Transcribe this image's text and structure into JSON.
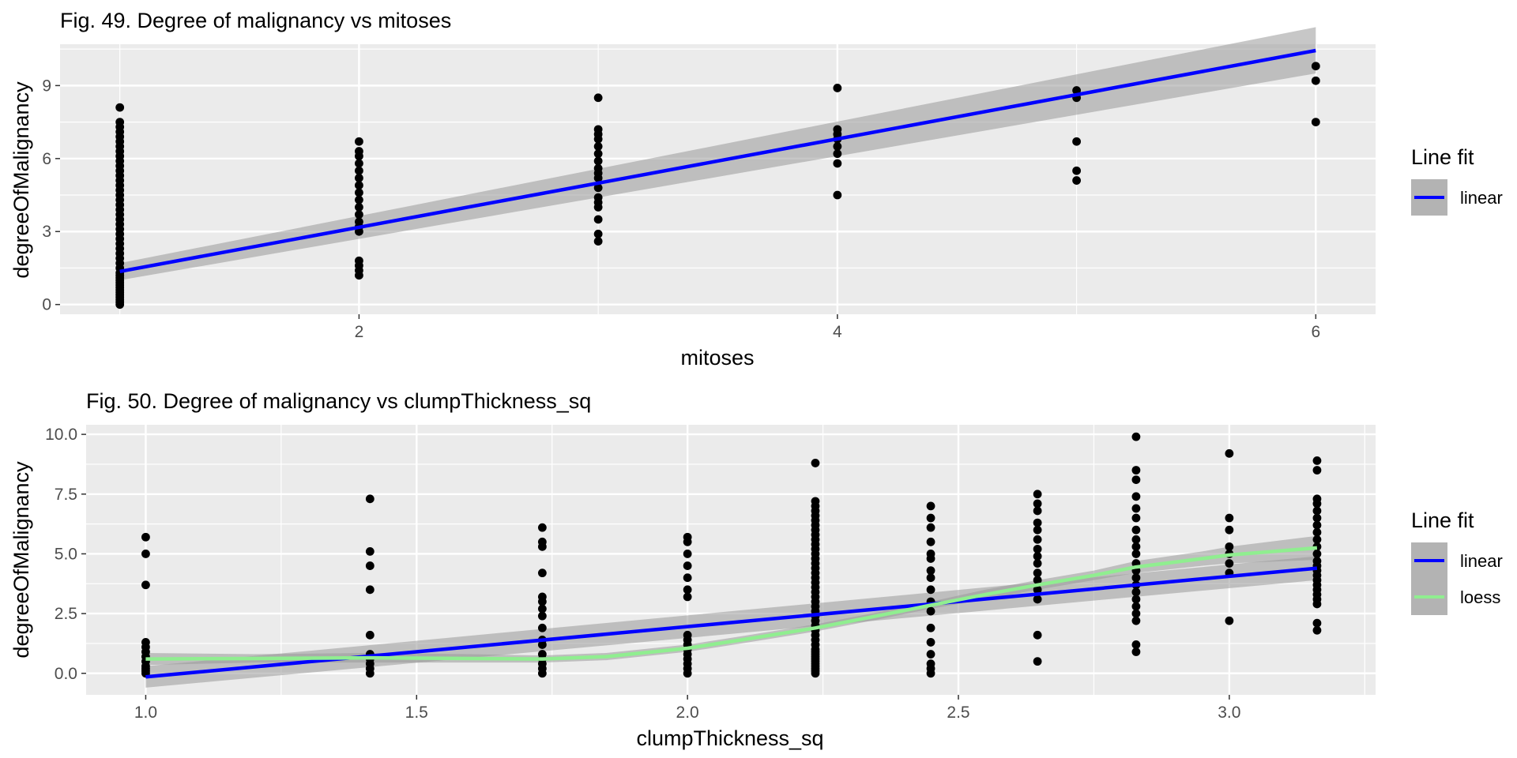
{
  "chart_data": [
    {
      "type": "scatter",
      "title": "Fig. 49. Degree of malignancy vs mitoses",
      "xlabel": "mitoses",
      "ylabel": "degreeOfMalignancy",
      "xlim": [
        0.75,
        6.25
      ],
      "ylim": [
        -0.4,
        10.7
      ],
      "x_ticks": [
        2,
        4,
        6
      ],
      "x_tick_labels": [
        "2",
        "4",
        "6"
      ],
      "y_ticks": [
        0,
        3,
        6,
        9
      ],
      "y_tick_labels": [
        "0",
        "3",
        "6",
        "9"
      ],
      "grid": true,
      "legend": {
        "title": "Line fit",
        "position": "right",
        "entries": [
          {
            "label": "linear",
            "color": "#0000ff"
          }
        ]
      },
      "colors": {
        "panel": "#ebebeb",
        "points": "#000000",
        "linear": "#0000ff",
        "ribbon": "#999999"
      },
      "points": [
        {
          "x": 1,
          "y": [
            0.0,
            0.1,
            0.2,
            0.3,
            0.4,
            0.5,
            0.6,
            0.7,
            0.8,
            0.9,
            1.0,
            1.1,
            1.2,
            1.3,
            1.5,
            1.7,
            1.9,
            2.1,
            2.3,
            2.5,
            2.7,
            2.9,
            3.1,
            3.3,
            3.5,
            3.7,
            3.9,
            4.1,
            4.3,
            4.5,
            4.7,
            4.9,
            5.1,
            5.3,
            5.5,
            5.7,
            5.9,
            6.1,
            6.3,
            6.5,
            6.7,
            6.9,
            7.1,
            7.3,
            7.5,
            8.1
          ]
        },
        {
          "x": 2,
          "y": [
            1.2,
            1.4,
            1.6,
            1.8,
            3.0,
            3.2,
            3.4,
            3.7,
            4.0,
            4.3,
            4.6,
            4.9,
            5.2,
            5.5,
            5.8,
            6.1,
            6.3,
            6.7
          ]
        },
        {
          "x": 3,
          "y": [
            2.6,
            2.9,
            3.5,
            4.0,
            4.2,
            4.4,
            4.8,
            5.2,
            5.4,
            5.6,
            5.9,
            6.2,
            6.5,
            6.8,
            7.0,
            7.2,
            8.5
          ]
        },
        {
          "x": 4,
          "y": [
            4.5,
            5.8,
            6.2,
            6.5,
            6.8,
            7.0,
            7.2,
            8.9
          ]
        },
        {
          "x": 5,
          "y": [
            5.1,
            5.5,
            6.7,
            8.5,
            8.8
          ]
        },
        {
          "x": 6,
          "y": [
            7.5,
            9.2,
            9.8
          ]
        }
      ],
      "fits": [
        {
          "name": "linear",
          "color": "#0000ff",
          "x": [
            1,
            6
          ],
          "y": [
            1.36,
            10.44
          ],
          "se_lower": [
            1.0,
            9.5
          ],
          "se_upper": [
            1.7,
            11.4
          ]
        }
      ]
    },
    {
      "type": "scatter",
      "title": "Fig. 50. Degree of malignancy vs clumpThickness_sq",
      "xlabel": "clumpThickness_sq",
      "ylabel": "degreeOfMalignancy",
      "xlim": [
        0.89,
        3.27
      ],
      "ylim": [
        -0.9,
        10.4
      ],
      "x_ticks": [
        1.0,
        1.5,
        2.0,
        2.5,
        3.0
      ],
      "x_tick_labels": [
        "1.0",
        "1.5",
        "2.0",
        "2.5",
        "3.0"
      ],
      "y_ticks": [
        0,
        2.5,
        5,
        7.5,
        10
      ],
      "y_tick_labels": [
        "0.0",
        "2.5",
        "5.0",
        "7.5",
        "10.0"
      ],
      "grid": true,
      "legend": {
        "title": "Line fit",
        "position": "right",
        "entries": [
          {
            "label": "linear",
            "color": "#0000ff"
          },
          {
            "label": "loess",
            "color": "#90ee90"
          }
        ]
      },
      "colors": {
        "panel": "#ebebeb",
        "points": "#000000",
        "linear": "#0000ff",
        "loess": "#90ee90",
        "ribbon": "#999999"
      },
      "points": [
        {
          "x": 1.0,
          "y": [
            0.0,
            0.1,
            0.2,
            0.3,
            0.5,
            0.7,
            0.9,
            1.1,
            1.3,
            3.7,
            5.0,
            5.7
          ]
        },
        {
          "x": 1.414,
          "y": [
            0.0,
            0.2,
            0.4,
            0.6,
            0.8,
            1.6,
            3.5,
            4.5,
            5.1,
            7.3
          ]
        },
        {
          "x": 1.732,
          "y": [
            0.0,
            0.2,
            0.4,
            0.6,
            0.8,
            1.2,
            1.4,
            1.9,
            2.4,
            2.7,
            3.0,
            3.2,
            4.2,
            5.3,
            5.5,
            6.1
          ]
        },
        {
          "x": 2.0,
          "y": [
            0.0,
            0.2,
            0.4,
            0.6,
            0.8,
            1.0,
            1.2,
            1.4,
            1.6,
            3.2,
            3.5,
            4.0,
            4.5,
            5.0,
            5.5,
            5.7
          ]
        },
        {
          "x": 2.236,
          "y": [
            0.0,
            0.1,
            0.2,
            0.3,
            0.4,
            0.5,
            0.6,
            0.7,
            0.8,
            0.9,
            1.0,
            1.2,
            1.4,
            1.6,
            1.8,
            2.0,
            2.2,
            2.4,
            2.6,
            2.8,
            3.0,
            3.2,
            3.4,
            3.6,
            3.8,
            4.0,
            4.2,
            4.4,
            4.6,
            4.8,
            5.0,
            5.2,
            5.4,
            5.6,
            5.8,
            6.0,
            6.2,
            6.4,
            6.6,
            6.8,
            7.0,
            7.2,
            8.8
          ]
        },
        {
          "x": 2.449,
          "y": [
            0.0,
            0.2,
            0.4,
            0.8,
            1.3,
            1.9,
            2.6,
            3.0,
            3.5,
            4.0,
            4.3,
            4.8,
            5.0,
            5.5,
            6.1,
            6.5,
            7.0
          ]
        },
        {
          "x": 2.646,
          "y": [
            0.5,
            1.6,
            3.1,
            3.5,
            3.9,
            4.2,
            4.6,
            4.9,
            5.2,
            5.6,
            6.0,
            6.3,
            6.8,
            7.1,
            7.5
          ]
        },
        {
          "x": 2.828,
          "y": [
            0.9,
            1.2,
            2.2,
            2.5,
            2.8,
            3.1,
            3.4,
            3.7,
            4.0,
            4.3,
            4.6,
            5.0,
            5.3,
            5.6,
            6.0,
            6.5,
            6.9,
            7.4,
            8.1,
            8.5,
            9.9
          ]
        },
        {
          "x": 3.0,
          "y": [
            2.2,
            4.2,
            4.6,
            5.0,
            5.3,
            6.0,
            6.5,
            9.2
          ]
        },
        {
          "x": 3.162,
          "y": [
            1.8,
            2.1,
            2.9,
            3.1,
            3.3,
            3.5,
            3.7,
            3.9,
            4.1,
            4.3,
            4.5,
            4.7,
            5.0,
            5.3,
            5.6,
            5.9,
            6.2,
            6.5,
            6.8,
            7.1,
            7.3,
            8.5,
            8.9
          ]
        }
      ],
      "fits": [
        {
          "name": "linear",
          "color": "#0000ff",
          "x": [
            1.0,
            3.162
          ],
          "y": [
            -0.15,
            4.4
          ],
          "se_lower": [
            -0.6,
            3.9
          ],
          "se_upper": [
            0.3,
            4.9
          ]
        },
        {
          "name": "loess",
          "color": "#90ee90",
          "x": [
            1.0,
            1.2,
            1.414,
            1.6,
            1.732,
            1.85,
            2.0,
            2.1,
            2.236,
            2.35,
            2.449,
            2.55,
            2.646,
            2.75,
            2.828,
            2.95,
            3.0,
            3.162
          ],
          "y": [
            0.6,
            0.62,
            0.65,
            0.62,
            0.6,
            0.7,
            1.05,
            1.4,
            1.9,
            2.4,
            2.85,
            3.3,
            3.7,
            4.1,
            4.45,
            4.8,
            4.95,
            5.25
          ],
          "se_lower": [
            0.35,
            0.45,
            0.45,
            0.45,
            0.45,
            0.55,
            0.9,
            1.25,
            1.75,
            2.25,
            2.7,
            3.1,
            3.5,
            3.9,
            4.2,
            4.5,
            4.6,
            4.75
          ],
          "se_upper": [
            0.85,
            0.8,
            0.85,
            0.8,
            0.75,
            0.85,
            1.2,
            1.55,
            2.05,
            2.55,
            3.0,
            3.5,
            3.9,
            4.3,
            4.7,
            5.1,
            5.3,
            5.75
          ]
        }
      ]
    }
  ]
}
